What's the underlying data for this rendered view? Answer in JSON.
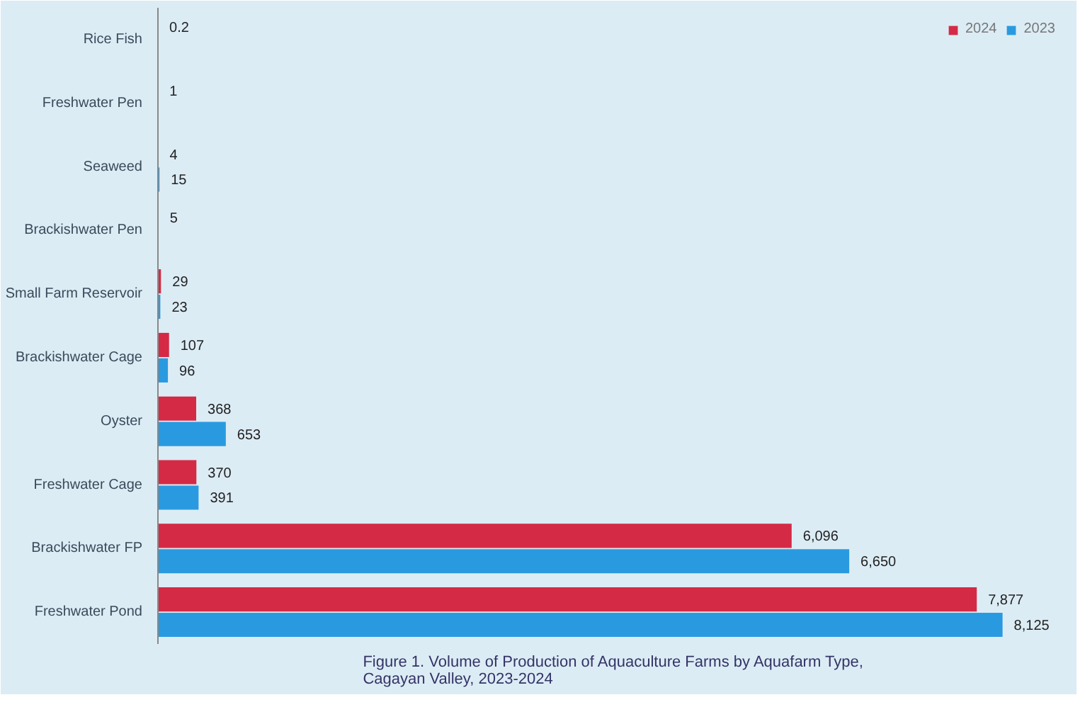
{
  "chart_data": {
    "type": "bar",
    "orientation": "horizontal",
    "title": "Figure 1. Volume of Production of Aquaculture Farms by Aquafarm Type,\nCagayan Valley, 2023-2024",
    "categories": [
      "Rice Fish",
      "Freshwater Pen",
      "Seaweed",
      "Brackishwater Pen",
      "Small Farm Reservoir",
      "Brackishwater Cage",
      "Oyster",
      "Freshwater Cage",
      "Brackishwater FP",
      "Freshwater Pond"
    ],
    "series": [
      {
        "name": "2024",
        "color": "#d42a45",
        "values": [
          0.2,
          1,
          4,
          5,
          29,
          107,
          368,
          370,
          6096,
          7877
        ],
        "value_labels": [
          "0.2",
          "1",
          "4",
          "5",
          "29",
          "107",
          "368",
          "370",
          "6,096",
          "7,877"
        ]
      },
      {
        "name": "2023",
        "color": "#2a9ae0",
        "values": [
          null,
          null,
          15,
          null,
          23,
          96,
          653,
          391,
          6650,
          8125
        ],
        "value_labels": [
          null,
          null,
          "15",
          null,
          "23",
          "96",
          "653",
          "391",
          "6,650",
          "8,125"
        ]
      }
    ],
    "legend": "top right",
    "grid": false,
    "tick_labels": "y"
  }
}
